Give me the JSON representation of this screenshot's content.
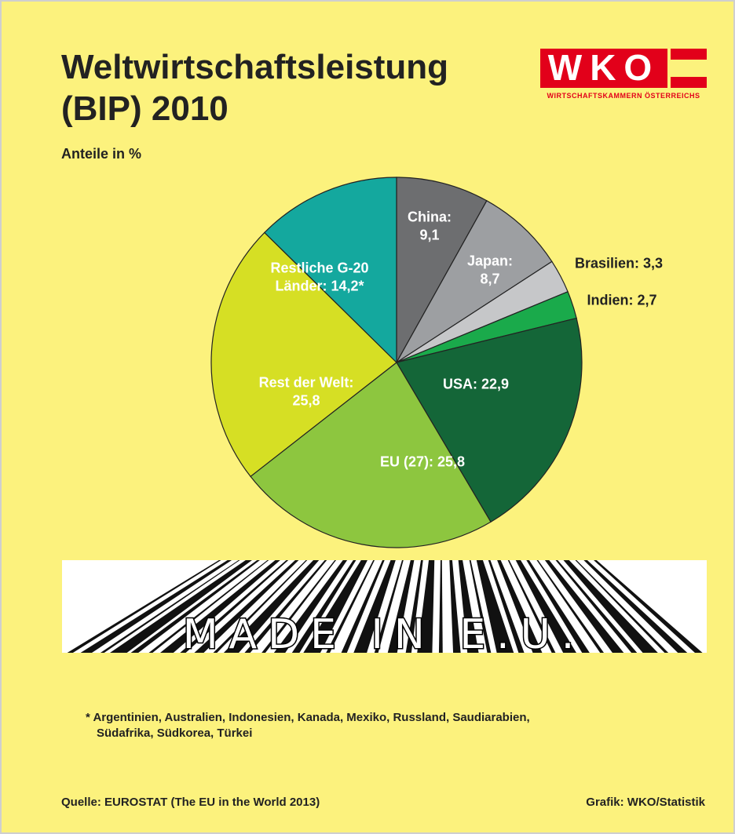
{
  "header": {
    "title": "Weltwirtschaftsleistung (BIP) 2010",
    "subtitle": "Anteile in %"
  },
  "logo": {
    "text": "WKO",
    "caption": "WIRTSCHAFTSKAMMERN ÖSTERREICHS"
  },
  "chart_data": {
    "type": "pie",
    "categories": [
      "China:",
      "Japan:",
      "Brasilien:",
      "Indien:",
      "USA:",
      "EU (27):",
      "Rest der Welt:",
      "Restliche G-20 Länder:"
    ],
    "values": [
      9.1,
      8.7,
      3.3,
      2.7,
      22.9,
      25.8,
      25.8,
      14.2
    ],
    "value_labels": [
      "9,1",
      "8,7",
      "3,3",
      "2,7",
      "22,9",
      "25,8",
      "25,8",
      "14,2*"
    ],
    "colors": [
      "#6d6e70",
      "#9d9fa2",
      "#c6c7c9",
      "#1aaa4b",
      "#146638",
      "#8dc63f",
      "#d6df24",
      "#14a89e"
    ]
  },
  "banner": {
    "text": "MADE IN E.U."
  },
  "footnote": "* Argentinien, Australien, Indonesien, Kanada, Mexiko, Russland, Saudiarabien, Südafrika, Südkorea, Türkei",
  "footer": {
    "source": "Quelle: EUROSTAT (The EU in the World 2013)",
    "credit": "Grafik: WKO/Statistik"
  }
}
